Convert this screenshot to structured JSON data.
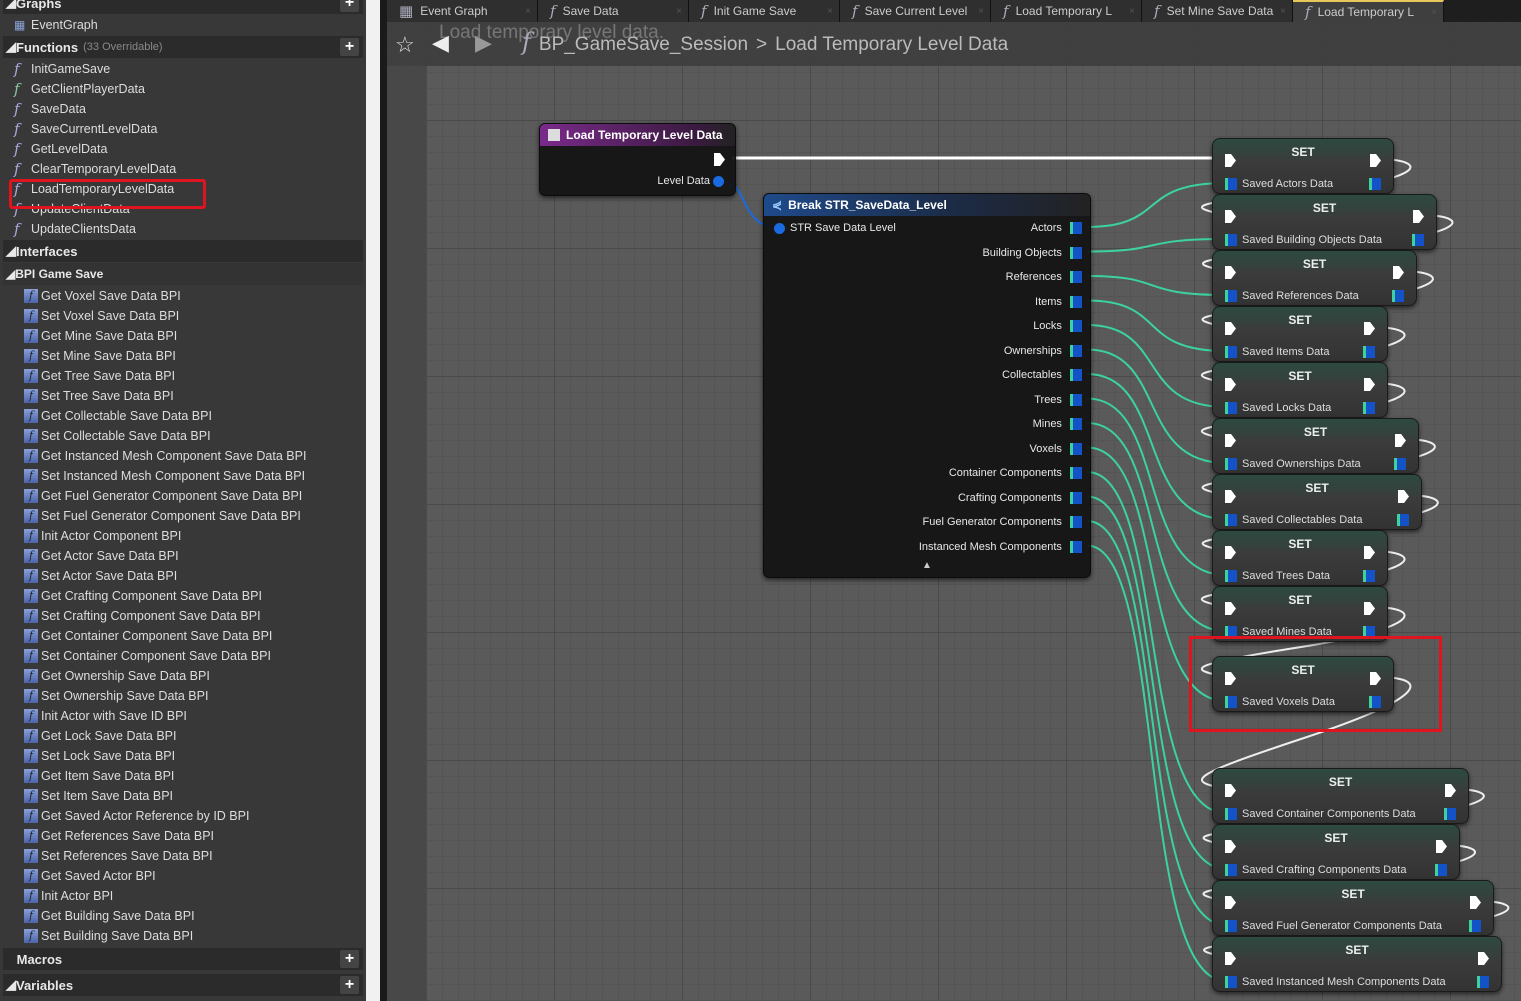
{
  "sidebar": {
    "graphs_label": "Graphs",
    "event_graph": "EventGraph",
    "functions_label": "Functions",
    "functions_sub": "(33 Overridable)",
    "functions": [
      "InitGameSave",
      "GetClientPlayerData",
      "SaveData",
      "SaveCurrentLevelData",
      "GetLevelData",
      "ClearTemporaryLevelData",
      "LoadTemporaryLevelData",
      "UpdateClientData",
      "UpdateClientsData"
    ],
    "selected_function": "LoadTemporaryLevelData",
    "interfaces_label": "Interfaces",
    "bpi_label": "BPI Game Save",
    "bpi": [
      "Get Voxel Save Data BPI",
      "Set Voxel Save Data BPI",
      "Get Mine Save Data BPI",
      "Set Mine Save Data BPI",
      "Get Tree Save Data BPI",
      "Set Tree Save Data BPI",
      "Get Collectable Save Data BPI",
      "Set Collectable Save Data BPI",
      "Get Instanced Mesh Component Save Data BPI",
      "Set Instanced Mesh Component Save Data BPI",
      "Get Fuel Generator Component Save Data BPI",
      "Set Fuel Generator Component Save Data BPI",
      "Init Actor Component BPI",
      "Get Actor Save Data BPI",
      "Set Actor Save Data BPI",
      "Get Crafting Component Save Data BPI",
      "Set Crafting Component Save Data BPI",
      "Get Container Component Save Data BPI",
      "Set Container Component Save Data BPI",
      "Get Ownership Save Data BPI",
      "Set Ownership Save Data BPI",
      "Init Actor with Save ID BPI",
      "Get Lock Save Data BPI",
      "Set Lock Save Data BPI",
      "Get Item Save Data BPI",
      "Set Item Save Data BPI",
      "Get Saved Actor Reference by ID BPI",
      "Get References Save Data BPI",
      "Set References Save Data BPI",
      "Get Saved Actor BPI",
      "Init Actor BPI",
      "Get Building Save Data BPI",
      "Set Building Save Data BPI"
    ],
    "macros_label": "Macros",
    "variables_label": "Variables"
  },
  "tabs": [
    {
      "label": "Event Graph",
      "icon": "event-graph-icon"
    },
    {
      "label": "Save Data",
      "icon": "function-icon"
    },
    {
      "label": "Init Game Save",
      "icon": "function-icon"
    },
    {
      "label": "Save Current Level",
      "icon": "function-icon"
    },
    {
      "label": "Load Temporary L",
      "icon": "function-icon"
    },
    {
      "label": "Set Mine Save Data",
      "icon": "function-icon"
    },
    {
      "label": "Load Temporary L",
      "icon": "function-icon",
      "active": true
    }
  ],
  "breadcrumb": {
    "ghost": "Load temporary level data.",
    "root": "BP_GameSave_Session",
    "sep": ">",
    "current": "Load Temporary Level Data"
  },
  "entry_node": {
    "title": "Load Temporary Level Data",
    "pin": "Level Data",
    "color": "#7a2a8a"
  },
  "break_node": {
    "title": "Break STR_SaveData_Level",
    "input": "STR Save Data Level",
    "outputs": [
      "Actors",
      "Building Objects",
      "References",
      "Items",
      "Locks",
      "Ownerships",
      "Collectables",
      "Trees",
      "Mines",
      "Voxels",
      "Container Components",
      "Crafting Components",
      "Fuel Generator Components",
      "Instanced Mesh Components"
    ]
  },
  "set_nodes": {
    "title": "SET",
    "labels": [
      "Saved Actors Data",
      "Saved Building Objects Data",
      "Saved References Data",
      "Saved Items Data",
      "Saved Locks Data",
      "Saved Ownerships Data",
      "Saved Collectables Data",
      "Saved Trees Data",
      "Saved Mines Data",
      "Saved Voxels Data",
      "Saved Container Components Data",
      "Saved Crafting Components Data",
      "Saved Fuel Generator Components Data",
      "Saved Instanced Mesh Components Data"
    ],
    "highlighted": "Saved Voxels Data"
  },
  "colors": {
    "array_wire": "#3cd2a0",
    "struct_pin": "#1452c8",
    "exec": "#ffffff",
    "highlight": "#e0141e"
  }
}
